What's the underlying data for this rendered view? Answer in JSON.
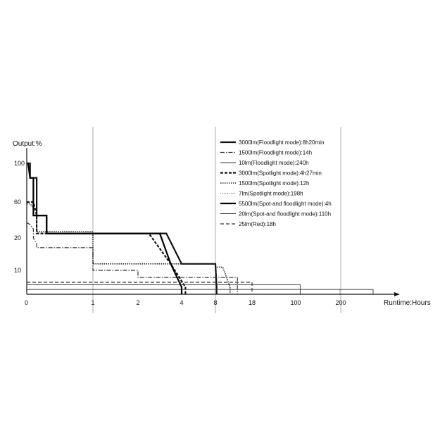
{
  "chart_data": {
    "type": "line",
    "y_title": "Output:%",
    "x_title": "Runtime:Hours",
    "y_ticks": [
      "100",
      "60",
      "20",
      "10"
    ],
    "x_ticks": [
      "0",
      "1",
      "2",
      "4",
      "8",
      "18",
      "100",
      "200"
    ],
    "x_scale": "piecewise (tick labels evenly placed per segment)",
    "y_scale": "piecewise (tick labels at uneven positions)",
    "grid": "vertical lines at 1, 8 and 200 hours",
    "legend_position": "top-right",
    "series": [
      {
        "name": "3000lm(Floodlight mode):8h20min",
        "style": "solid-thick",
        "color": "#111111",
        "x": [
          0,
          0.05,
          0.05,
          0.15,
          0.15,
          0.3,
          0.3,
          1.5,
          2.5,
          3.3,
          4.0,
          5.8,
          8.0,
          8.33,
          8.33
        ],
        "y": [
          100,
          100,
          85,
          85,
          45,
          45,
          25,
          25,
          25,
          25,
          12,
          12,
          12,
          3,
          0
        ]
      },
      {
        "name": "1500lm(Floodlight mode):14h",
        "style": "dash-dot",
        "color": "#333333",
        "x": [
          0,
          0.05,
          0.1,
          0.1,
          0.15,
          0.15,
          1.0,
          1.0,
          2.0,
          2.0,
          8.0,
          12.0,
          14.0,
          14.0
        ],
        "y": [
          37,
          35,
          30,
          20,
          18,
          17,
          17,
          10,
          10,
          7,
          7,
          7,
          7,
          0
        ]
      },
      {
        "name": "10lm(Floodlight mode):240h",
        "style": "solid-thin",
        "color": "#333333",
        "x": [
          0,
          100,
          200,
          240,
          240
        ],
        "y": [
          2,
          2,
          2,
          2,
          0
        ]
      },
      {
        "name": "3000lm(Spotlight mode):4h27min",
        "style": "dashed-thick",
        "color": "#111111",
        "x": [
          0,
          0.1,
          0.15,
          0.15,
          0.3,
          0.3,
          2.5,
          2.5,
          3.5,
          4.45,
          4.45
        ],
        "y": [
          60,
          60,
          45,
          25,
          25,
          25,
          25,
          25,
          12,
          3,
          0
        ]
      },
      {
        "name": "1500lm(Spotlight mode):12h",
        "style": "dotted",
        "color": "#222222",
        "x": [
          0,
          0.05,
          0.15,
          0.15,
          1.0,
          1.0,
          8.0,
          8.0,
          10.0,
          12.0,
          12.0
        ],
        "y": [
          58,
          58,
          50,
          27,
          27,
          12,
          12,
          11,
          11,
          3,
          0
        ]
      },
      {
        "name": "7lm(Spotlight mode):198h",
        "style": "dotted-thin",
        "color": "#555555",
        "x": [
          0,
          100,
          198,
          198
        ],
        "y": [
          2,
          2,
          2,
          0
        ]
      },
      {
        "name": "5500lm(Spot-and floodlight mode):4h",
        "style": "solid-thick",
        "color": "#000000",
        "x": [
          0,
          0.02,
          0.05,
          0.05,
          0.1,
          0.1,
          0.15,
          0.15,
          0.3,
          0.3,
          2.2,
          3.0,
          3.5,
          4.0,
          4.0
        ],
        "y": [
          100,
          100,
          85,
          85,
          85,
          45,
          45,
          45,
          45,
          25,
          25,
          25,
          12,
          3,
          0
        ]
      },
      {
        "name": "20lm(Spot-and floodlight mode):110h",
        "style": "solid-thin",
        "color": "#333333",
        "x": [
          0,
          18,
          100,
          110,
          110
        ],
        "y": [
          4,
          4,
          4,
          4,
          0
        ]
      },
      {
        "name": "25lm(Red):18h",
        "style": "dashed",
        "color": "#333333",
        "x": [
          0,
          8,
          18,
          18
        ],
        "y": [
          5,
          5,
          5,
          0
        ]
      }
    ]
  }
}
